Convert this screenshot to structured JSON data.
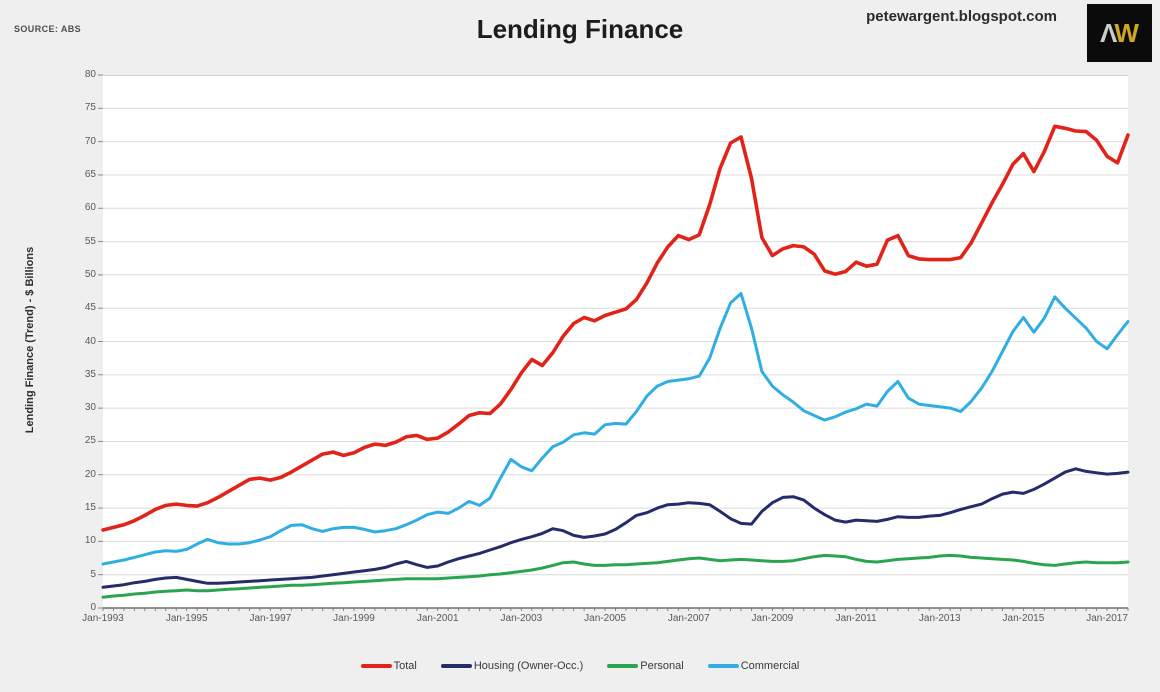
{
  "header": {
    "source_label": "SOURCE: ABS",
    "site": "petewargent.blogspot.com",
    "logo_a": "Λ",
    "logo_w": "W"
  },
  "chart_data": {
    "type": "line",
    "title": "Lending Finance",
    "xlabel": "",
    "ylabel": "Lending Finance (Trend) - $ Billions",
    "ylim": [
      0,
      80
    ],
    "ytick_step": 5,
    "grid": true,
    "legend_position": "bottom",
    "x_start_year": 1993,
    "x_points_per_year": 4,
    "x_tick_interval_years": 2,
    "x_tick_labels": [
      "Jan-1993",
      "Jan-1995",
      "Jan-1997",
      "Jan-1999",
      "Jan-2001",
      "Jan-2003",
      "Jan-2005",
      "Jan-2007",
      "Jan-2009",
      "Jan-2011",
      "Jan-2013",
      "Jan-2015",
      "Jan-2017"
    ],
    "series": [
      {
        "name": "Total",
        "color": "#e2231a",
        "values": [
          11.7,
          12.1,
          12.5,
          13.1,
          13.9,
          14.8,
          15.4,
          15.6,
          15.4,
          15.3,
          15.8,
          16.6,
          17.5,
          18.4,
          19.3,
          19.5,
          19.2,
          19.6,
          20.4,
          21.3,
          22.2,
          23.1,
          23.4,
          22.9,
          23.3,
          24.1,
          24.6,
          24.4,
          24.9,
          25.7,
          25.9,
          25.3,
          25.5,
          26.4,
          27.6,
          28.9,
          29.3,
          29.2,
          30.6,
          32.8,
          35.3,
          37.3,
          36.4,
          38.3,
          40.8,
          42.7,
          43.6,
          43.1,
          43.9,
          44.4,
          44.9,
          46.3,
          48.8,
          51.8,
          54.2,
          55.9,
          55.3,
          56.0,
          60.5,
          66.0,
          69.8,
          70.7,
          64.5,
          55.6,
          52.9,
          53.9,
          54.4,
          54.2,
          53.1,
          50.6,
          50.1,
          50.5,
          51.9,
          51.3,
          51.6,
          55.2,
          55.9,
          52.9,
          52.4,
          52.3,
          52.3,
          52.3,
          52.6,
          54.8,
          57.8,
          60.8,
          63.6,
          66.6,
          68.2,
          65.5,
          68.5,
          72.3,
          72.0,
          71.6,
          71.5,
          70.2,
          67.8,
          66.8,
          71.0
        ]
      },
      {
        "name": "Housing (Owner-Occ.)",
        "color": "#252c6a",
        "values": [
          3.1,
          3.3,
          3.5,
          3.8,
          4.0,
          4.3,
          4.5,
          4.6,
          4.3,
          4.0,
          3.7,
          3.7,
          3.8,
          3.9,
          4.0,
          4.1,
          4.2,
          4.3,
          4.4,
          4.5,
          4.6,
          4.8,
          5.0,
          5.2,
          5.4,
          5.6,
          5.8,
          6.1,
          6.6,
          7.0,
          6.5,
          6.1,
          6.3,
          6.9,
          7.4,
          7.8,
          8.2,
          8.7,
          9.2,
          9.8,
          10.3,
          10.7,
          11.2,
          11.9,
          11.6,
          10.9,
          10.6,
          10.8,
          11.1,
          11.8,
          12.8,
          13.9,
          14.3,
          15.0,
          15.5,
          15.6,
          15.8,
          15.7,
          15.5,
          14.5,
          13.4,
          12.7,
          12.6,
          14.5,
          15.8,
          16.6,
          16.7,
          16.2,
          15.0,
          14.0,
          13.2,
          12.9,
          13.2,
          13.1,
          13.0,
          13.3,
          13.7,
          13.6,
          13.6,
          13.8,
          13.9,
          14.3,
          14.8,
          15.2,
          15.6,
          16.4,
          17.1,
          17.4,
          17.2,
          17.8,
          18.6,
          19.5,
          20.4,
          20.9,
          20.5,
          20.3,
          20.1,
          20.2,
          20.4
        ]
      },
      {
        "name": "Personal",
        "color": "#2aa44f",
        "values": [
          1.6,
          1.8,
          1.9,
          2.1,
          2.2,
          2.4,
          2.5,
          2.6,
          2.7,
          2.6,
          2.6,
          2.7,
          2.8,
          2.9,
          3.0,
          3.1,
          3.2,
          3.3,
          3.4,
          3.4,
          3.5,
          3.6,
          3.7,
          3.8,
          3.9,
          4.0,
          4.1,
          4.2,
          4.3,
          4.4,
          4.4,
          4.4,
          4.4,
          4.5,
          4.6,
          4.7,
          4.8,
          5.0,
          5.1,
          5.3,
          5.5,
          5.7,
          6.0,
          6.4,
          6.8,
          6.9,
          6.6,
          6.4,
          6.4,
          6.5,
          6.5,
          6.6,
          6.7,
          6.8,
          7.0,
          7.2,
          7.4,
          7.5,
          7.3,
          7.1,
          7.2,
          7.3,
          7.2,
          7.1,
          7.0,
          7.0,
          7.1,
          7.4,
          7.7,
          7.9,
          7.8,
          7.7,
          7.3,
          7.0,
          6.9,
          7.1,
          7.3,
          7.4,
          7.5,
          7.6,
          7.8,
          7.9,
          7.8,
          7.6,
          7.5,
          7.4,
          7.3,
          7.2,
          7.0,
          6.7,
          6.5,
          6.4,
          6.6,
          6.8,
          6.9,
          6.8,
          6.8,
          6.8,
          6.9
        ]
      },
      {
        "name": "Commercial",
        "color": "#30aee4",
        "values": [
          6.6,
          6.9,
          7.2,
          7.6,
          8.0,
          8.4,
          8.6,
          8.5,
          8.8,
          9.6,
          10.3,
          9.8,
          9.6,
          9.6,
          9.8,
          10.2,
          10.7,
          11.6,
          12.4,
          12.5,
          11.9,
          11.5,
          11.9,
          12.1,
          12.1,
          11.8,
          11.4,
          11.6,
          11.9,
          12.5,
          13.2,
          14.0,
          14.4,
          14.2,
          15.0,
          16.0,
          15.4,
          16.5,
          19.5,
          22.3,
          21.2,
          20.6,
          22.5,
          24.2,
          24.9,
          26.0,
          26.3,
          26.1,
          27.5,
          27.7,
          27.6,
          29.5,
          31.8,
          33.3,
          34.0,
          34.2,
          34.4,
          34.8,
          37.5,
          42.0,
          45.8,
          47.2,
          42.0,
          35.5,
          33.3,
          32.0,
          30.9,
          29.6,
          28.9,
          28.2,
          28.7,
          29.4,
          29.9,
          30.6,
          30.3,
          32.5,
          34.0,
          31.5,
          30.6,
          30.4,
          30.2,
          30.0,
          29.5,
          31.0,
          33.0,
          35.5,
          38.5,
          41.5,
          43.6,
          41.4,
          43.5,
          46.7,
          45.0,
          43.5,
          42.0,
          40.0,
          38.9,
          41.0,
          43.0
        ]
      }
    ]
  }
}
